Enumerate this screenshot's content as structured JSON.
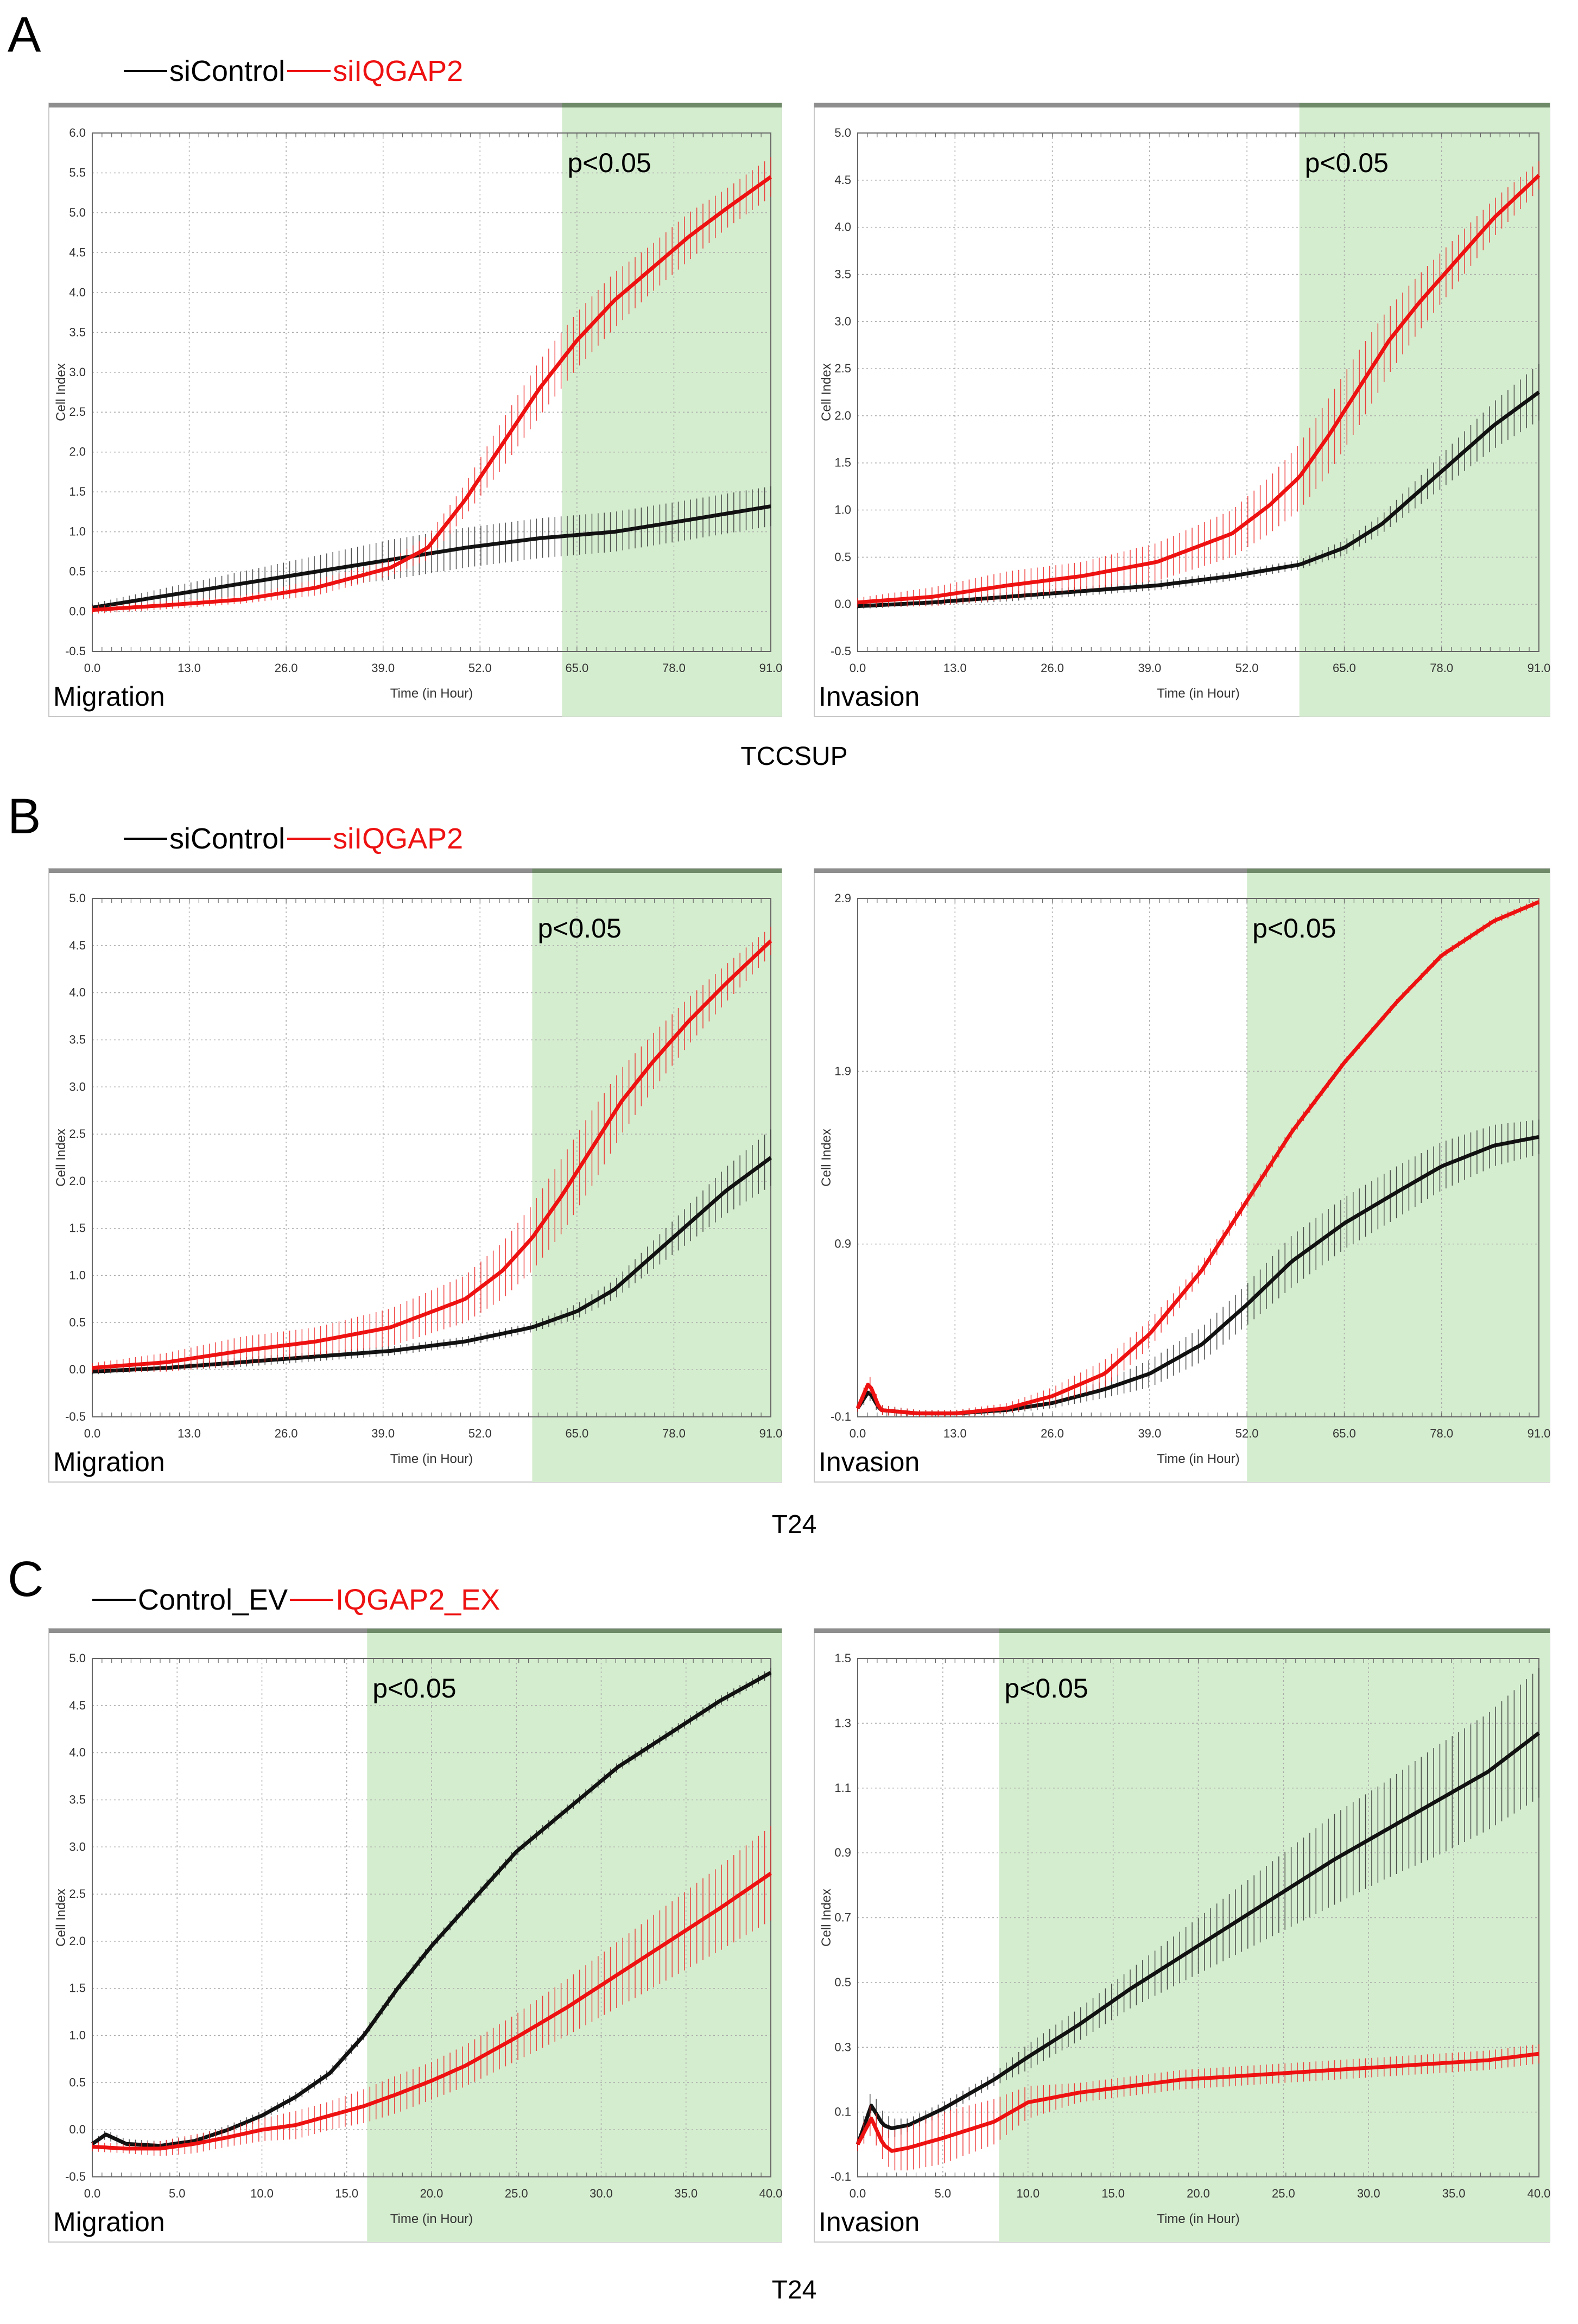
{
  "panels": [
    {
      "letter": "A",
      "cell_line": "TCCSUP",
      "legend": {
        "control": "siControl",
        "treatment": "siIQGAP2"
      },
      "colors": {
        "control": "#000000",
        "treatment": "#e11111",
        "highlight": "#d5edcf"
      }
    },
    {
      "letter": "B",
      "cell_line": "T24",
      "legend": {
        "control": "siControl",
        "treatment": "siIQGAP2"
      },
      "colors": {
        "control": "#000000",
        "treatment": "#e11111",
        "highlight": "#d5edcf"
      }
    },
    {
      "letter": "C",
      "cell_line": "T24",
      "legend": {
        "control": "Control_EV",
        "treatment": "IQGAP2_EX"
      },
      "colors": {
        "control": "#000000",
        "treatment": "#e11111",
        "highlight": "#d5edcf"
      }
    }
  ],
  "chart_data": [
    {
      "type": "line",
      "id": "A-migration",
      "assay": "Migration",
      "annotation": "p<0.05",
      "ylabel": "Cell Index",
      "xlabel": "Time (in Hour)",
      "xlim": [
        0,
        91
      ],
      "ylim": [
        -0.5,
        6.0
      ],
      "shade_from": 63,
      "xticks": [
        "0.0",
        "13.0",
        "26.0",
        "39.0",
        "52.0",
        "65.0",
        "78.0",
        "91.0"
      ],
      "yticks": [
        "-0.5",
        "0.0",
        "0.5",
        "1.0",
        "1.5",
        "2.0",
        "2.5",
        "3.0",
        "3.5",
        "4.0",
        "4.5",
        "5.0",
        "5.5",
        "6.0"
      ],
      "series": [
        {
          "name": "control",
          "x": [
            0,
            10,
            20,
            30,
            40,
            50,
            60,
            70,
            80,
            91
          ],
          "y": [
            0.05,
            0.2,
            0.35,
            0.5,
            0.65,
            0.8,
            0.92,
            1.0,
            1.15,
            1.32
          ],
          "err": [
            0.05,
            0.1,
            0.15,
            0.2,
            0.25,
            0.25,
            0.25,
            0.25,
            0.25,
            0.25
          ]
        },
        {
          "name": "treatment",
          "x": [
            0,
            10,
            20,
            30,
            40,
            45,
            50,
            55,
            60,
            65,
            70,
            75,
            80,
            85,
            91
          ],
          "y": [
            0.02,
            0.08,
            0.15,
            0.3,
            0.55,
            0.8,
            1.4,
            2.1,
            2.8,
            3.4,
            3.9,
            4.3,
            4.7,
            5.05,
            5.45
          ],
          "err": [
            0.05,
            0.05,
            0.05,
            0.1,
            0.1,
            0.15,
            0.2,
            0.3,
            0.35,
            0.35,
            0.35,
            0.3,
            0.3,
            0.25,
            0.25
          ]
        }
      ]
    },
    {
      "type": "line",
      "id": "A-invasion",
      "assay": "Invasion",
      "annotation": "p<0.05",
      "ylabel": "Cell Index",
      "xlabel": "Time (in Hour)",
      "xlim": [
        0,
        91
      ],
      "ylim": [
        -0.5,
        5.0
      ],
      "shade_from": 59,
      "xticks": [
        "0.0",
        "13.0",
        "26.0",
        "39.0",
        "52.0",
        "65.0",
        "78.0",
        "91.0"
      ],
      "yticks": [
        "-0.5",
        "0.0",
        "0.5",
        "1.0",
        "1.5",
        "2.0",
        "2.5",
        "3.0",
        "3.5",
        "4.0",
        "4.5",
        "5.0"
      ],
      "series": [
        {
          "name": "control",
          "x": [
            0,
            10,
            20,
            30,
            40,
            50,
            59,
            65,
            70,
            75,
            80,
            85,
            91
          ],
          "y": [
            -0.02,
            0.02,
            0.08,
            0.14,
            0.2,
            0.3,
            0.42,
            0.6,
            0.85,
            1.2,
            1.55,
            1.9,
            2.25
          ],
          "err": [
            0.03,
            0.03,
            0.05,
            0.05,
            0.05,
            0.05,
            0.05,
            0.08,
            0.1,
            0.15,
            0.2,
            0.25,
            0.3
          ]
        },
        {
          "name": "treatment",
          "x": [
            0,
            10,
            20,
            30,
            40,
            50,
            55,
            59,
            63,
            67,
            71,
            75,
            80,
            85,
            91
          ],
          "y": [
            0.02,
            0.08,
            0.2,
            0.3,
            0.45,
            0.75,
            1.05,
            1.35,
            1.8,
            2.3,
            2.8,
            3.2,
            3.65,
            4.1,
            4.55
          ],
          "err": [
            0.05,
            0.1,
            0.15,
            0.15,
            0.2,
            0.25,
            0.3,
            0.35,
            0.4,
            0.4,
            0.35,
            0.3,
            0.25,
            0.2,
            0.15
          ]
        }
      ]
    },
    {
      "type": "line",
      "id": "B-migration",
      "assay": "Migration",
      "annotation": "p<0.05",
      "ylabel": "Cell Index",
      "xlabel": "Time (in Hour)",
      "xlim": [
        0,
        91
      ],
      "ylim": [
        -0.5,
        5.0
      ],
      "shade_from": 59,
      "xticks": [
        "0.0",
        "13.0",
        "26.0",
        "39.0",
        "52.0",
        "65.0",
        "78.0",
        "91.0"
      ],
      "yticks": [
        "-0.5",
        "0.0",
        "0.5",
        "1.0",
        "1.5",
        "2.0",
        "2.5",
        "3.0",
        "3.5",
        "4.0",
        "4.5",
        "5.0"
      ],
      "series": [
        {
          "name": "control",
          "x": [
            0,
            10,
            20,
            30,
            40,
            50,
            59,
            65,
            70,
            75,
            80,
            85,
            91
          ],
          "y": [
            -0.02,
            0.02,
            0.08,
            0.14,
            0.2,
            0.3,
            0.45,
            0.62,
            0.85,
            1.2,
            1.55,
            1.9,
            2.25
          ],
          "err": [
            0.03,
            0.03,
            0.05,
            0.05,
            0.05,
            0.05,
            0.05,
            0.08,
            0.1,
            0.15,
            0.2,
            0.25,
            0.3
          ]
        },
        {
          "name": "treatment",
          "x": [
            0,
            10,
            20,
            30,
            40,
            50,
            55,
            59,
            63,
            67,
            71,
            75,
            80,
            85,
            91
          ],
          "y": [
            0.02,
            0.08,
            0.2,
            0.3,
            0.45,
            0.75,
            1.05,
            1.4,
            1.85,
            2.35,
            2.85,
            3.25,
            3.7,
            4.1,
            4.55
          ],
          "err": [
            0.05,
            0.1,
            0.15,
            0.15,
            0.2,
            0.25,
            0.3,
            0.35,
            0.4,
            0.4,
            0.35,
            0.3,
            0.25,
            0.2,
            0.15
          ]
        }
      ]
    },
    {
      "type": "line",
      "id": "B-invasion",
      "assay": "Invasion",
      "annotation": "p<0.05",
      "ylabel": "Cell Index",
      "xlabel": "Time (in Hour)",
      "xlim": [
        0,
        91
      ],
      "ylim": [
        -0.1,
        2.9
      ],
      "shade_from": 52,
      "xticks": [
        "0.0",
        "13.0",
        "26.0",
        "39.0",
        "52.0",
        "65.0",
        "78.0",
        "91.0"
      ],
      "yticks": [
        "-0.1",
        "0.9",
        "1.9",
        "2.9"
      ],
      "series": [
        {
          "name": "control",
          "x": [
            0,
            1.5,
            3,
            8,
            13,
            20,
            26,
            33,
            39,
            46,
            52,
            58,
            65,
            72,
            78,
            85,
            91
          ],
          "y": [
            -0.05,
            0.05,
            -0.06,
            -0.08,
            -0.08,
            -0.06,
            -0.02,
            0.06,
            0.15,
            0.32,
            0.55,
            0.8,
            1.02,
            1.2,
            1.35,
            1.47,
            1.52
          ],
          "err": [
            0.02,
            0.05,
            0.03,
            0.02,
            0.02,
            0.02,
            0.03,
            0.05,
            0.08,
            0.1,
            0.12,
            0.15,
            0.15,
            0.15,
            0.14,
            0.12,
            0.1
          ]
        },
        {
          "name": "treatment",
          "x": [
            0,
            1.5,
            3,
            8,
            13,
            20,
            26,
            33,
            39,
            46,
            52,
            58,
            65,
            72,
            78,
            85,
            91
          ],
          "y": [
            -0.05,
            0.1,
            -0.06,
            -0.08,
            -0.08,
            -0.05,
            0.02,
            0.15,
            0.38,
            0.75,
            1.15,
            1.55,
            1.95,
            2.3,
            2.57,
            2.77,
            2.88
          ],
          "err": [
            0.02,
            0.05,
            0.03,
            0.02,
            0.02,
            0.03,
            0.05,
            0.08,
            0.08,
            0.05,
            0.04,
            0.03,
            0.02,
            0.02,
            0.02,
            0.02,
            0.02
          ]
        }
      ]
    },
    {
      "type": "line",
      "id": "C-migration",
      "assay": "Migration",
      "annotation": "p<0.05",
      "ylabel": "Cell Index",
      "xlabel": "Time (in Hour)",
      "xlim": [
        0,
        40
      ],
      "ylim": [
        -0.5,
        5.0
      ],
      "shade_from": 16.2,
      "xticks": [
        "0.0",
        "5.0",
        "10.0",
        "15.0",
        "20.0",
        "25.0",
        "30.0",
        "35.0",
        "40.0"
      ],
      "yticks": [
        "-0.5",
        "0.0",
        "0.5",
        "1.0",
        "1.5",
        "2.0",
        "2.5",
        "3.0",
        "3.5",
        "4.0",
        "4.5",
        "5.0"
      ],
      "series": [
        {
          "name": "control",
          "x": [
            0,
            0.8,
            2,
            4,
            6,
            8,
            10,
            12,
            14,
            16,
            18,
            20,
            22,
            25,
            28,
            31,
            34,
            37,
            40
          ],
          "y": [
            -0.15,
            -0.05,
            -0.15,
            -0.17,
            -0.12,
            0.0,
            0.15,
            0.35,
            0.6,
            1.0,
            1.5,
            1.95,
            2.35,
            2.95,
            3.4,
            3.85,
            4.2,
            4.55,
            4.85
          ],
          "err": [
            0.03,
            0.05,
            0.05,
            0.05,
            0.05,
            0.05,
            0.05,
            0.05,
            0.05,
            0.05,
            0.05,
            0.05,
            0.05,
            0.05,
            0.05,
            0.05,
            0.05,
            0.05,
            0.05
          ]
        },
        {
          "name": "treatment",
          "x": [
            0,
            2,
            4,
            6,
            8,
            10,
            12,
            14,
            16,
            18,
            20,
            22,
            25,
            28,
            31,
            34,
            37,
            40
          ],
          "y": [
            -0.18,
            -0.2,
            -0.2,
            -0.15,
            -0.08,
            0.0,
            0.05,
            0.15,
            0.25,
            0.38,
            0.52,
            0.68,
            0.98,
            1.3,
            1.65,
            2.0,
            2.35,
            2.72
          ],
          "err": [
            0.05,
            0.05,
            0.08,
            0.1,
            0.1,
            0.12,
            0.15,
            0.15,
            0.18,
            0.2,
            0.2,
            0.22,
            0.25,
            0.3,
            0.35,
            0.4,
            0.45,
            0.5
          ]
        }
      ]
    },
    {
      "type": "line",
      "id": "C-invasion",
      "assay": "Invasion",
      "annotation": "p<0.05",
      "ylabel": "Cell Index",
      "xlabel": "Time (in Hour)",
      "xlim": [
        0,
        40
      ],
      "ylim": [
        -0.1,
        1.5
      ],
      "shade_from": 8.3,
      "xticks": [
        "0.0",
        "5.0",
        "10.0",
        "15.0",
        "20.0",
        "25.0",
        "30.0",
        "35.0",
        "40.0"
      ],
      "yticks": [
        "-0.1",
        "0.1",
        "0.3",
        "0.5",
        "0.7",
        "0.9",
        "1.1",
        "1.3",
        "1.5"
      ],
      "series": [
        {
          "name": "control",
          "x": [
            0,
            0.8,
            1.5,
            2,
            3,
            5,
            8,
            10,
            13,
            16,
            19,
            22,
            25,
            28,
            31,
            34,
            37,
            40
          ],
          "y": [
            0.0,
            0.12,
            0.06,
            0.05,
            0.06,
            0.11,
            0.2,
            0.27,
            0.37,
            0.48,
            0.58,
            0.68,
            0.78,
            0.88,
            0.97,
            1.06,
            1.15,
            1.27
          ],
          "err": [
            0.02,
            0.05,
            0.04,
            0.03,
            0.02,
            0.02,
            0.02,
            0.04,
            0.05,
            0.06,
            0.08,
            0.1,
            0.12,
            0.14,
            0.15,
            0.17,
            0.18,
            0.2
          ]
        },
        {
          "name": "treatment",
          "x": [
            0,
            0.8,
            1.5,
            2,
            3,
            5,
            8,
            10,
            13,
            16,
            19,
            22,
            25,
            28,
            31,
            34,
            37,
            40
          ],
          "y": [
            0.0,
            0.08,
            0.0,
            -0.02,
            -0.01,
            0.02,
            0.07,
            0.13,
            0.16,
            0.18,
            0.2,
            0.21,
            0.22,
            0.23,
            0.24,
            0.25,
            0.26,
            0.28
          ],
          "err": [
            0.02,
            0.05,
            0.05,
            0.06,
            0.07,
            0.08,
            0.07,
            0.05,
            0.03,
            0.03,
            0.03,
            0.03,
            0.03,
            0.03,
            0.03,
            0.03,
            0.03,
            0.03
          ]
        }
      ]
    }
  ]
}
